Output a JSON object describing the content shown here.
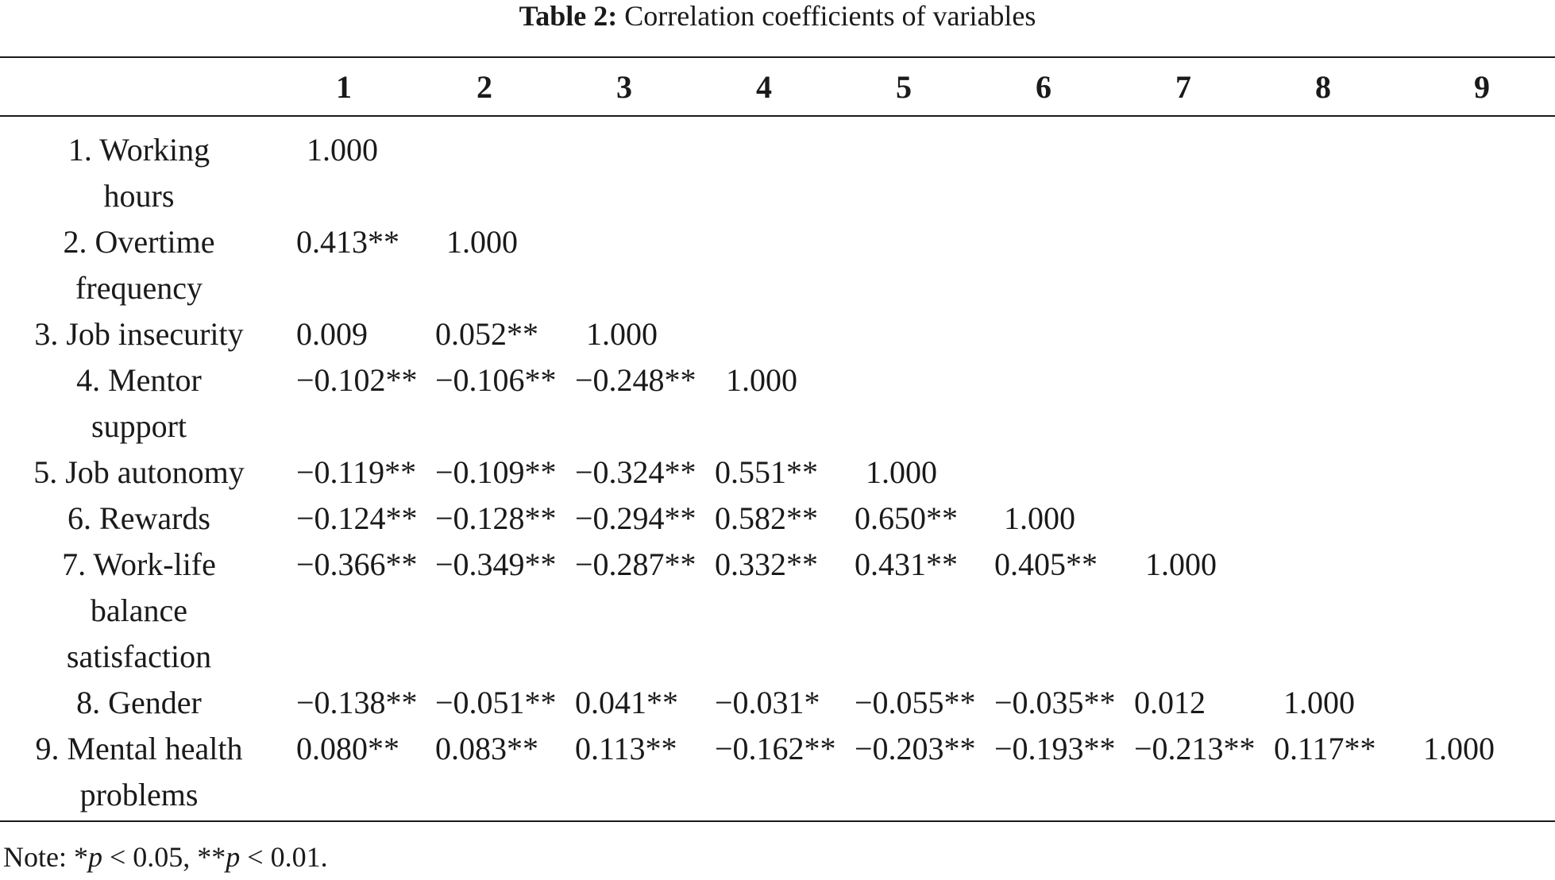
{
  "caption": {
    "label": "Table 2:",
    "text": "Correlation coefficients of variables"
  },
  "columns": [
    "1",
    "2",
    "3",
    "4",
    "5",
    "6",
    "7",
    "8",
    "9"
  ],
  "rows": [
    {
      "label": "1. Working\nhours",
      "values": [
        "1.000"
      ]
    },
    {
      "label": "2. Overtime\nfrequency",
      "values": [
        "0.413**",
        "1.000"
      ]
    },
    {
      "label": "3. Job insecurity",
      "values": [
        "0.009",
        "0.052**",
        "1.000"
      ]
    },
    {
      "label": "4. Mentor\nsupport",
      "values": [
        "−0.102**",
        "−0.106**",
        "−0.248**",
        "1.000"
      ]
    },
    {
      "label": "5. Job autonomy",
      "values": [
        "−0.119**",
        "−0.109**",
        "−0.324**",
        "0.551**",
        "1.000"
      ]
    },
    {
      "label": "6. Rewards",
      "values": [
        "−0.124**",
        "−0.128**",
        "−0.294**",
        "0.582**",
        "0.650**",
        "1.000"
      ]
    },
    {
      "label": "7. Work-life\nbalance\nsatisfaction",
      "values": [
        "−0.366**",
        "−0.349**",
        "−0.287**",
        "0.332**",
        "0.431**",
        "0.405**",
        "1.000"
      ]
    },
    {
      "label": "8. Gender",
      "values": [
        "−0.138**",
        "−0.051**",
        "0.041**",
        "−0.031*",
        "−0.055**",
        "−0.035**",
        "0.012",
        "1.000"
      ]
    },
    {
      "label": "9. Mental health\nproblems",
      "values": [
        "0.080**",
        "0.083**",
        "0.113**",
        "−0.162**",
        "−0.203**",
        "−0.193**",
        "−0.213**",
        "0.117**",
        "1.000"
      ]
    }
  ],
  "note": {
    "prefix": "Note: ",
    "sig1_mark": "*",
    "sig1_var": "p",
    "sig1_text": " < 0.05, ",
    "sig2_mark": "**",
    "sig2_var": "p",
    "sig2_text": " < 0.01."
  }
}
